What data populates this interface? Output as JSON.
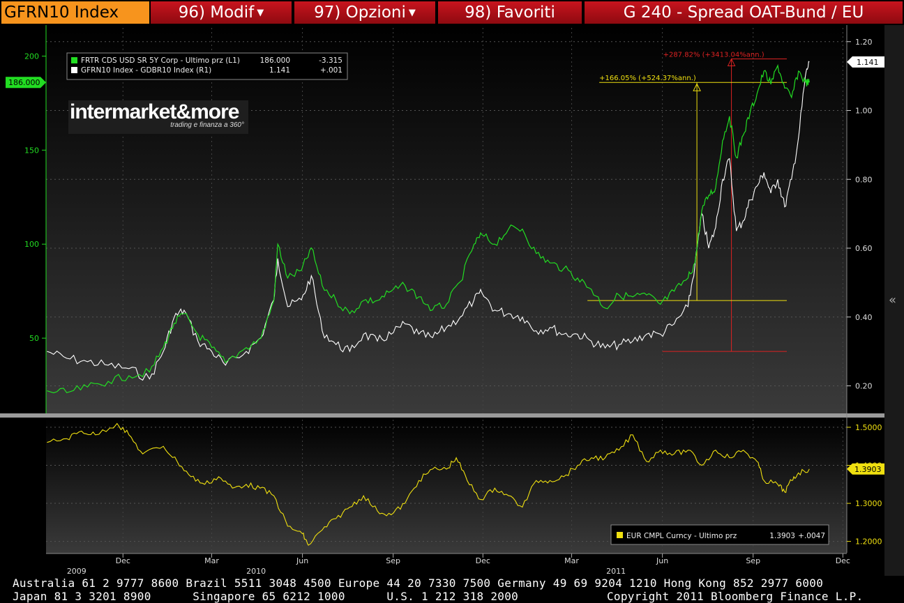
{
  "header": {
    "ticker": "GFRN10 Index",
    "menu": [
      {
        "label": "96) Modif",
        "dropdown": true
      },
      {
        "label": "97) Opzioni",
        "dropdown": true
      },
      {
        "label": "98) Favoriti",
        "dropdown": false
      }
    ],
    "title": "G 240 - Spread OAT-Bund / EU"
  },
  "logo": {
    "main": "intermarket&more",
    "sub": "trading e finanza a 360°"
  },
  "footer": {
    "line1": "Australia 61 2 9777 8600 Brazil 5511 3048 4500 Europe 44 20 7330 7500 Germany 49 69 9204 1210 Hong Kong 852 2977 6000",
    "line2a": "Japan 81 3 3201 8900      Singapore 65 6212 1000      U.S. 1 212 318 2000",
    "line2b": "Copyright 2011 Bloomberg Finance L.P."
  },
  "colors": {
    "green": "#22dd22",
    "white": "#ffffff",
    "yellow": "#f0e010",
    "red": "#dd2222",
    "panel_bg_top": "#000000",
    "panel_bg_bottom": "#3a3a3a"
  },
  "chart_data": [
    {
      "type": "line",
      "panel": "upper",
      "legend": [
        {
          "name": "FRTR CDS USD SR 5Y Corp - Ultimo prz (L1)",
          "last": "186.000",
          "change": "-3.315",
          "color": "#22dd22"
        },
        {
          "name": "GFRN10 Index - GDBR10 Index (R1)",
          "last": "1.141",
          "change": "+.001",
          "color": "#ffffff"
        }
      ],
      "left_axis": {
        "ticks": [
          50,
          100,
          150,
          200
        ],
        "range": [
          10,
          215
        ],
        "last_label": "186.000"
      },
      "right_axis": {
        "ticks": [
          "0.20",
          "0.40",
          "0.60",
          "0.80",
          "1.00",
          "1.20"
        ],
        "range": [
          0.12,
          1.24
        ],
        "last_label": "1.141"
      },
      "x_range": [
        "2009-09-14",
        "2011-12-05"
      ],
      "series": [
        {
          "name": "FRTR CDS USD SR 5Y Corp",
          "axis": "left",
          "points": [
            [
              "2009-09-15",
              22
            ],
            [
              "2009-10-05",
              21
            ],
            [
              "2009-10-26",
              24
            ],
            [
              "2009-11-16",
              27
            ],
            [
              "2009-12-07",
              30
            ],
            [
              "2009-12-28",
              32
            ],
            [
              "2010-01-11",
              45
            ],
            [
              "2010-01-22",
              58
            ],
            [
              "2010-02-01",
              63
            ],
            [
              "2010-02-15",
              52
            ],
            [
              "2010-03-01",
              45
            ],
            [
              "2010-03-15",
              37
            ],
            [
              "2010-04-05",
              45
            ],
            [
              "2010-04-20",
              50
            ],
            [
              "2010-05-03",
              70
            ],
            [
              "2010-05-07",
              100
            ],
            [
              "2010-05-17",
              82
            ],
            [
              "2010-05-31",
              86
            ],
            [
              "2010-06-10",
              98
            ],
            [
              "2010-06-21",
              78
            ],
            [
              "2010-07-05",
              70
            ],
            [
              "2010-07-19",
              63
            ],
            [
              "2010-08-02",
              70
            ],
            [
              "2010-08-16",
              70
            ],
            [
              "2010-08-30",
              75
            ],
            [
              "2010-09-13",
              78
            ],
            [
              "2010-09-27",
              72
            ],
            [
              "2010-10-11",
              65
            ],
            [
              "2010-10-25",
              68
            ],
            [
              "2010-11-08",
              80
            ],
            [
              "2010-11-22",
              100
            ],
            [
              "2010-11-30",
              105
            ],
            [
              "2010-12-13",
              100
            ],
            [
              "2010-12-27",
              108
            ],
            [
              "2011-01-10",
              108
            ],
            [
              "2011-01-24",
              95
            ],
            [
              "2011-02-07",
              90
            ],
            [
              "2011-02-21",
              87
            ],
            [
              "2011-03-07",
              82
            ],
            [
              "2011-03-21",
              76
            ],
            [
              "2011-04-04",
              66
            ],
            [
              "2011-04-18",
              73
            ],
            [
              "2011-05-02",
              72
            ],
            [
              "2011-05-16",
              73
            ],
            [
              "2011-05-30",
              68
            ],
            [
              "2011-06-13",
              75
            ],
            [
              "2011-06-27",
              82
            ],
            [
              "2011-07-04",
              90
            ],
            [
              "2011-07-11",
              118
            ],
            [
              "2011-07-18",
              126
            ],
            [
              "2011-07-25",
              130
            ],
            [
              "2011-08-01",
              155
            ],
            [
              "2011-08-08",
              168
            ],
            [
              "2011-08-15",
              146
            ],
            [
              "2011-08-22",
              158
            ],
            [
              "2011-08-29",
              170
            ],
            [
              "2011-09-05",
              180
            ],
            [
              "2011-09-12",
              192
            ],
            [
              "2011-09-19",
              185
            ],
            [
              "2011-09-26",
              195
            ],
            [
              "2011-10-03",
              183
            ],
            [
              "2011-10-10",
              178
            ],
            [
              "2011-10-17",
              192
            ],
            [
              "2011-10-24",
              186
            ],
            [
              "2011-10-28",
              186
            ]
          ]
        },
        {
          "name": "GFRN10 Index - GDBR10 Index",
          "axis": "right",
          "points": [
            [
              "2009-09-15",
              0.3
            ],
            [
              "2009-10-05",
              0.28
            ],
            [
              "2009-10-26",
              0.27
            ],
            [
              "2009-11-16",
              0.26
            ],
            [
              "2009-12-07",
              0.25
            ],
            [
              "2009-12-28",
              0.22
            ],
            [
              "2010-01-11",
              0.3
            ],
            [
              "2010-01-22",
              0.4
            ],
            [
              "2010-02-01",
              0.42
            ],
            [
              "2010-02-15",
              0.33
            ],
            [
              "2010-03-01",
              0.3
            ],
            [
              "2010-03-15",
              0.26
            ],
            [
              "2010-04-05",
              0.3
            ],
            [
              "2010-04-20",
              0.34
            ],
            [
              "2010-05-03",
              0.45
            ],
            [
              "2010-05-07",
              0.57
            ],
            [
              "2010-05-17",
              0.43
            ],
            [
              "2010-05-31",
              0.45
            ],
            [
              "2010-06-10",
              0.52
            ],
            [
              "2010-06-21",
              0.36
            ],
            [
              "2010-07-05",
              0.32
            ],
            [
              "2010-07-19",
              0.3
            ],
            [
              "2010-08-02",
              0.35
            ],
            [
              "2010-08-16",
              0.33
            ],
            [
              "2010-08-30",
              0.35
            ],
            [
              "2010-09-13",
              0.38
            ],
            [
              "2010-09-27",
              0.35
            ],
            [
              "2010-10-11",
              0.34
            ],
            [
              "2010-10-25",
              0.37
            ],
            [
              "2010-11-08",
              0.4
            ],
            [
              "2010-11-22",
              0.45
            ],
            [
              "2010-11-30",
              0.47
            ],
            [
              "2010-12-13",
              0.42
            ],
            [
              "2010-12-27",
              0.41
            ],
            [
              "2011-01-10",
              0.4
            ],
            [
              "2011-01-24",
              0.36
            ],
            [
              "2011-02-07",
              0.37
            ],
            [
              "2011-02-21",
              0.35
            ],
            [
              "2011-03-07",
              0.35
            ],
            [
              "2011-03-21",
              0.33
            ],
            [
              "2011-04-04",
              0.31
            ],
            [
              "2011-04-18",
              0.32
            ],
            [
              "2011-05-02",
              0.33
            ],
            [
              "2011-05-16",
              0.35
            ],
            [
              "2011-05-30",
              0.35
            ],
            [
              "2011-06-13",
              0.38
            ],
            [
              "2011-06-27",
              0.43
            ],
            [
              "2011-07-04",
              0.55
            ],
            [
              "2011-07-11",
              0.7
            ],
            [
              "2011-07-18",
              0.6
            ],
            [
              "2011-07-25",
              0.66
            ],
            [
              "2011-08-01",
              0.8
            ],
            [
              "2011-08-08",
              0.86
            ],
            [
              "2011-08-15",
              0.65
            ],
            [
              "2011-08-22",
              0.68
            ],
            [
              "2011-08-29",
              0.74
            ],
            [
              "2011-09-05",
              0.78
            ],
            [
              "2011-09-12",
              0.82
            ],
            [
              "2011-09-19",
              0.76
            ],
            [
              "2011-09-26",
              0.8
            ],
            [
              "2011-10-03",
              0.72
            ],
            [
              "2011-10-10",
              0.8
            ],
            [
              "2011-10-17",
              0.92
            ],
            [
              "2011-10-24",
              1.1
            ],
            [
              "2011-10-28",
              1.141
            ]
          ]
        }
      ],
      "annotations": [
        {
          "label": "+287.82% (+3413.04%ann.)",
          "color": "#dd2222",
          "from_date": "2011-06-01",
          "from_value": 0.3,
          "to_date": "2011-08-10",
          "to_value": 1.15,
          "axis": "right"
        },
        {
          "label": "+166.05% (+524.37%ann.)",
          "color": "#f0e010",
          "from_date": "2011-03-17",
          "from_value": 70,
          "to_date": "2011-07-06",
          "to_value": 186,
          "axis": "left"
        }
      ]
    },
    {
      "type": "line",
      "panel": "lower",
      "legend": [
        {
          "name": "EUR CMPL Curncy - Ultimo prz",
          "last": "1.3903",
          "change": "+.0047",
          "color": "#f0e010"
        }
      ],
      "right_axis": {
        "ticks": [
          "1.2000",
          "1.3000",
          "1.4000",
          "1.5000"
        ],
        "range": [
          1.17,
          1.52
        ],
        "last_label": "1.3903"
      },
      "series": [
        {
          "name": "EUR CMPL Curncy",
          "axis": "right",
          "points": [
            [
              "2009-09-15",
              1.46
            ],
            [
              "2009-10-05",
              1.47
            ],
            [
              "2009-10-20",
              1.49
            ],
            [
              "2009-11-03",
              1.48
            ],
            [
              "2009-11-25",
              1.51
            ],
            [
              "2009-12-07",
              1.48
            ],
            [
              "2009-12-21",
              1.43
            ],
            [
              "2010-01-11",
              1.45
            ],
            [
              "2010-01-25",
              1.41
            ],
            [
              "2010-02-08",
              1.37
            ],
            [
              "2010-02-22",
              1.35
            ],
            [
              "2010-03-08",
              1.37
            ],
            [
              "2010-03-22",
              1.34
            ],
            [
              "2010-04-05",
              1.35
            ],
            [
              "2010-04-19",
              1.34
            ],
            [
              "2010-05-03",
              1.32
            ],
            [
              "2010-05-17",
              1.24
            ],
            [
              "2010-06-01",
              1.22
            ],
            [
              "2010-06-07",
              1.19
            ],
            [
              "2010-06-21",
              1.23
            ],
            [
              "2010-07-05",
              1.26
            ],
            [
              "2010-07-19",
              1.29
            ],
            [
              "2010-08-02",
              1.32
            ],
            [
              "2010-08-16",
              1.28
            ],
            [
              "2010-08-30",
              1.27
            ],
            [
              "2010-09-13",
              1.3
            ],
            [
              "2010-09-27",
              1.36
            ],
            [
              "2010-10-11",
              1.39
            ],
            [
              "2010-10-25",
              1.39
            ],
            [
              "2010-11-04",
              1.42
            ],
            [
              "2010-11-15",
              1.36
            ],
            [
              "2010-11-29",
              1.31
            ],
            [
              "2010-12-13",
              1.34
            ],
            [
              "2010-12-27",
              1.32
            ],
            [
              "2011-01-10",
              1.29
            ],
            [
              "2011-01-24",
              1.36
            ],
            [
              "2011-02-07",
              1.36
            ],
            [
              "2011-02-21",
              1.37
            ],
            [
              "2011-03-07",
              1.4
            ],
            [
              "2011-03-21",
              1.42
            ],
            [
              "2011-04-04",
              1.42
            ],
            [
              "2011-04-18",
              1.44
            ],
            [
              "2011-05-02",
              1.48
            ],
            [
              "2011-05-16",
              1.41
            ],
            [
              "2011-05-30",
              1.44
            ],
            [
              "2011-06-13",
              1.43
            ],
            [
              "2011-06-27",
              1.44
            ],
            [
              "2011-07-11",
              1.4
            ],
            [
              "2011-07-25",
              1.44
            ],
            [
              "2011-08-08",
              1.42
            ],
            [
              "2011-08-22",
              1.44
            ],
            [
              "2011-09-05",
              1.41
            ],
            [
              "2011-09-12",
              1.36
            ],
            [
              "2011-09-26",
              1.35
            ],
            [
              "2011-10-03",
              1.33
            ],
            [
              "2011-10-10",
              1.36
            ],
            [
              "2011-10-17",
              1.38
            ],
            [
              "2011-10-28",
              1.3903
            ]
          ]
        }
      ]
    }
  ],
  "x_axis": {
    "month_labels": [
      {
        "label": "Dec",
        "date": "2009-12-01"
      },
      {
        "label": "Mar",
        "date": "2010-03-01"
      },
      {
        "label": "Jun",
        "date": "2010-06-01"
      },
      {
        "label": "Sep",
        "date": "2010-09-01"
      },
      {
        "label": "Dec",
        "date": "2010-12-01"
      },
      {
        "label": "Mar",
        "date": "2011-03-01"
      },
      {
        "label": "Jun",
        "date": "2011-06-01"
      },
      {
        "label": "Sep",
        "date": "2011-09-01"
      },
      {
        "label": "Dec",
        "date": "2011-12-01"
      }
    ],
    "year_labels": [
      {
        "label": "2009",
        "date": "2009-10-15"
      },
      {
        "label": "2010",
        "date": "2010-04-15"
      },
      {
        "label": "2011",
        "date": "2011-04-15"
      }
    ]
  }
}
